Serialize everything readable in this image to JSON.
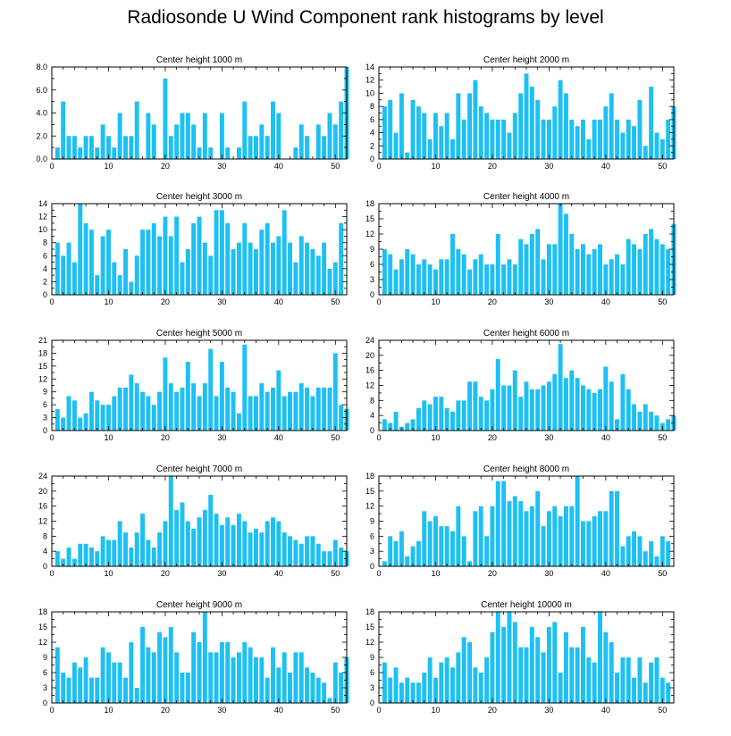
{
  "title": "Radiosonde U Wind Component rank histograms by level",
  "colors": {
    "bar": "#1ec0f2",
    "axis": "#000000",
    "background": "#ffffff"
  },
  "chart_data": [
    {
      "type": "bar",
      "title": "Center height 1000 m",
      "xlim": [
        0,
        52
      ],
      "ylim": [
        0,
        8
      ],
      "xticks": [
        0,
        10,
        20,
        30,
        40,
        50
      ],
      "yticks": [
        0,
        2,
        4,
        6,
        8
      ],
      "ytick_labels": [
        "0.0",
        "2.0",
        "4.0",
        "6.0",
        "8.0"
      ],
      "values": [
        1,
        5,
        2,
        2,
        1,
        2,
        2,
        1,
        3,
        2,
        1,
        4,
        2,
        2,
        5,
        0,
        4,
        3,
        0,
        7,
        2,
        3,
        4,
        4,
        3,
        1,
        4,
        1,
        0,
        4,
        1,
        0,
        1,
        5,
        2,
        2,
        3,
        2,
        5,
        4,
        0,
        0,
        1,
        3,
        2,
        0,
        3,
        2,
        4,
        3,
        5,
        8
      ]
    },
    {
      "type": "bar",
      "title": "Center height 2000 m",
      "xlim": [
        0,
        52
      ],
      "ylim": [
        0,
        14
      ],
      "xticks": [
        0,
        10,
        20,
        30,
        40,
        50
      ],
      "yticks": [
        0,
        2,
        4,
        6,
        8,
        10,
        12,
        14
      ],
      "ytick_labels": [
        "0",
        "2",
        "4",
        "6",
        "8",
        "10",
        "12",
        "14"
      ],
      "values": [
        8,
        9,
        4,
        10,
        1,
        9,
        8,
        7,
        3,
        7,
        5,
        7,
        3,
        10,
        6,
        10,
        12,
        8,
        7,
        6,
        6,
        6,
        4,
        7,
        10,
        13,
        11,
        9,
        6,
        6,
        8,
        12,
        10,
        6,
        5,
        6,
        3,
        6,
        6,
        8,
        10,
        6,
        4,
        6,
        5,
        9,
        2,
        11,
        4,
        3,
        6,
        8
      ]
    },
    {
      "type": "bar",
      "title": "Center height 3000 m",
      "xlim": [
        0,
        52
      ],
      "ylim": [
        0,
        14
      ],
      "xticks": [
        0,
        10,
        20,
        30,
        40,
        50
      ],
      "yticks": [
        0,
        2,
        4,
        6,
        8,
        10,
        12,
        14
      ],
      "ytick_labels": [
        "0",
        "2",
        "4",
        "6",
        "8",
        "10",
        "12",
        "14"
      ],
      "values": [
        8,
        6,
        8,
        5,
        14,
        11,
        10,
        3,
        9,
        10,
        5,
        3,
        7,
        2,
        6,
        10,
        10,
        11,
        9,
        12,
        9,
        12,
        5,
        7,
        11,
        12,
        8,
        6,
        13,
        13,
        11,
        7,
        8,
        11,
        8,
        7,
        10,
        11,
        8,
        9,
        13,
        8,
        5,
        9,
        8,
        7,
        6,
        8,
        4,
        5,
        11,
        0
      ]
    },
    {
      "type": "bar",
      "title": "Center height 4000 m",
      "xlim": [
        0,
        52
      ],
      "ylim": [
        0,
        18
      ],
      "xticks": [
        0,
        10,
        20,
        30,
        40,
        50
      ],
      "yticks": [
        0,
        3,
        6,
        9,
        12,
        15,
        18
      ],
      "ytick_labels": [
        "0",
        "3",
        "6",
        "9",
        "12",
        "15",
        "18"
      ],
      "values": [
        9,
        8,
        5,
        7,
        9,
        8,
        6,
        7,
        6,
        5,
        7,
        7,
        12,
        9,
        8,
        5,
        7,
        8,
        6,
        6,
        12,
        6,
        7,
        6,
        11,
        10,
        12,
        13,
        7,
        10,
        10,
        18,
        16,
        12,
        9,
        10,
        8,
        9,
        10,
        6,
        7,
        8,
        6,
        11,
        10,
        9,
        12,
        13,
        11,
        10,
        9,
        14
      ]
    },
    {
      "type": "bar",
      "title": "Center height 5000 m",
      "xlim": [
        0,
        52
      ],
      "ylim": [
        0,
        21
      ],
      "xticks": [
        0,
        10,
        20,
        30,
        40,
        50
      ],
      "yticks": [
        0,
        3,
        6,
        9,
        12,
        15,
        18,
        21
      ],
      "ytick_labels": [
        "0",
        "3",
        "6",
        "9",
        "12",
        "15",
        "18",
        "21"
      ],
      "values": [
        5,
        3,
        8,
        7,
        3,
        4,
        9,
        7,
        6,
        6,
        8,
        10,
        10,
        13,
        11,
        9,
        8,
        6,
        9,
        17,
        11,
        9,
        10,
        16,
        11,
        8,
        11,
        19,
        8,
        16,
        10,
        9,
        4,
        20,
        8,
        8,
        11,
        9,
        10,
        14,
        8,
        9,
        9,
        11,
        10,
        8,
        10,
        10,
        10,
        18,
        6,
        5
      ]
    },
    {
      "type": "bar",
      "title": "Center height 6000 m",
      "xlim": [
        0,
        52
      ],
      "ylim": [
        0,
        24
      ],
      "xticks": [
        0,
        10,
        20,
        30,
        40,
        50
      ],
      "yticks": [
        0,
        4,
        8,
        12,
        16,
        20,
        24
      ],
      "ytick_labels": [
        "0",
        "4",
        "8",
        "12",
        "16",
        "20",
        "24"
      ],
      "values": [
        3,
        2,
        5,
        1,
        2,
        3,
        6,
        8,
        7,
        9,
        9,
        6,
        5,
        8,
        8,
        13,
        13,
        9,
        8,
        11,
        19,
        12,
        12,
        16,
        9,
        13,
        11,
        11,
        12,
        13,
        15,
        23,
        14,
        16,
        14,
        12,
        11,
        10,
        11,
        17,
        13,
        3,
        15,
        11,
        7,
        5,
        7,
        5,
        4,
        2,
        3,
        4
      ]
    },
    {
      "type": "bar",
      "title": "Center height 7000 m",
      "xlim": [
        0,
        52
      ],
      "ylim": [
        0,
        24
      ],
      "xticks": [
        0,
        10,
        20,
        30,
        40,
        50
      ],
      "yticks": [
        0,
        4,
        8,
        12,
        16,
        20,
        24
      ],
      "ytick_labels": [
        "0",
        "4",
        "8",
        "12",
        "16",
        "20",
        "24"
      ],
      "values": [
        4,
        2,
        5,
        2,
        6,
        6,
        5,
        4,
        8,
        7,
        7,
        12,
        9,
        5,
        9,
        14,
        7,
        5,
        9,
        12,
        24,
        15,
        17,
        12,
        10,
        13,
        15,
        19,
        14,
        11,
        13,
        11,
        14,
        12,
        9,
        10,
        9,
        12,
        13,
        12,
        9,
        8,
        7,
        6,
        8,
        8,
        6,
        4,
        4,
        7,
        5,
        4
      ]
    },
    {
      "type": "bar",
      "title": "Center height 8000 m",
      "xlim": [
        0,
        52
      ],
      "ylim": [
        0,
        18
      ],
      "xticks": [
        0,
        10,
        20,
        30,
        40,
        50
      ],
      "yticks": [
        0,
        3,
        6,
        9,
        12,
        15,
        18
      ],
      "ytick_labels": [
        "0",
        "3",
        "6",
        "9",
        "12",
        "15",
        "18"
      ],
      "values": [
        1,
        6,
        5,
        7,
        2,
        4,
        5,
        11,
        9,
        10,
        8,
        8,
        7,
        12,
        6,
        1,
        11,
        12,
        6,
        12,
        17,
        17,
        13,
        14,
        13,
        11,
        12,
        15,
        8,
        11,
        12,
        10,
        12,
        12,
        18,
        9,
        9,
        10,
        11,
        11,
        15,
        15,
        4,
        6,
        7,
        6,
        3,
        5,
        2,
        6,
        5,
        0
      ]
    },
    {
      "type": "bar",
      "title": "Center height 9000 m",
      "xlim": [
        0,
        52
      ],
      "ylim": [
        0,
        18
      ],
      "xticks": [
        0,
        10,
        20,
        30,
        40,
        50
      ],
      "yticks": [
        0,
        3,
        6,
        9,
        12,
        15,
        18
      ],
      "ytick_labels": [
        "0",
        "3",
        "6",
        "9",
        "12",
        "15",
        "18"
      ],
      "values": [
        11,
        6,
        5,
        8,
        7,
        9,
        5,
        5,
        11,
        10,
        8,
        8,
        5,
        12,
        3,
        15,
        11,
        10,
        14,
        13,
        15,
        10,
        6,
        6,
        14,
        12,
        18,
        10,
        10,
        12,
        12,
        9,
        10,
        12,
        11,
        9,
        9,
        5,
        11,
        7,
        10,
        6,
        10,
        10,
        7,
        6,
        5,
        4,
        1,
        8,
        6,
        9
      ]
    },
    {
      "type": "bar",
      "title": "Center height 10000 m",
      "xlim": [
        0,
        52
      ],
      "ylim": [
        0,
        18
      ],
      "xticks": [
        0,
        10,
        20,
        30,
        40,
        50
      ],
      "yticks": [
        0,
        3,
        6,
        9,
        12,
        15,
        18
      ],
      "ytick_labels": [
        "0",
        "3",
        "6",
        "9",
        "12",
        "15",
        "18"
      ],
      "values": [
        8,
        5,
        7,
        4,
        5,
        4,
        4,
        6,
        9,
        5,
        8,
        9,
        7,
        10,
        13,
        12,
        7,
        6,
        9,
        14,
        18,
        15,
        18,
        16,
        11,
        11,
        15,
        13,
        10,
        15,
        16,
        6,
        14,
        11,
        11,
        15,
        9,
        8,
        18,
        14,
        12,
        6,
        9,
        9,
        5,
        9,
        4,
        8,
        9,
        5,
        4,
        0
      ]
    }
  ]
}
